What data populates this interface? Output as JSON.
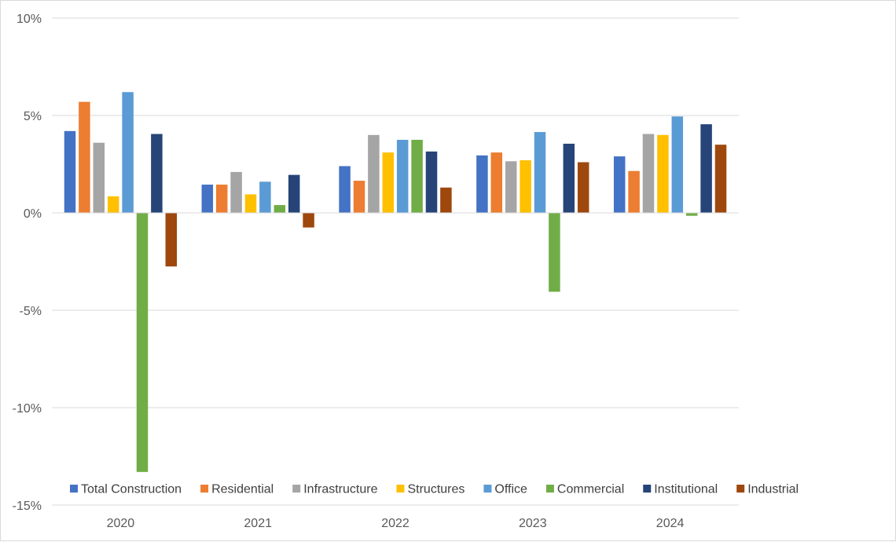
{
  "chart_data": {
    "type": "bar",
    "categories": [
      "2020",
      "2021",
      "2022",
      "2023",
      "2024"
    ],
    "ylim": [
      -15,
      10
    ],
    "yticks": [
      10,
      5,
      0,
      -5,
      -10,
      -15
    ],
    "ytick_labels": [
      "10%",
      "5%",
      "0%",
      "-5%",
      "-10%",
      "-15%"
    ],
    "grid": true,
    "legend_position": "bottom",
    "series": [
      {
        "name": "Total Construction",
        "color": "#4472C4",
        "values": [
          4.2,
          1.45,
          2.4,
          2.95,
          2.9
        ]
      },
      {
        "name": "Residential",
        "color": "#ED7D31",
        "values": [
          5.7,
          1.45,
          1.65,
          3.1,
          2.15
        ]
      },
      {
        "name": "Infrastructure",
        "color": "#A5A5A5",
        "values": [
          3.6,
          2.1,
          4.0,
          2.65,
          4.05
        ]
      },
      {
        "name": "Structures",
        "color": "#FFC000",
        "values": [
          0.85,
          0.95,
          3.1,
          2.7,
          4.0
        ]
      },
      {
        "name": "Office",
        "color": "#5B9BD5",
        "values": [
          6.2,
          1.6,
          3.75,
          4.15,
          4.95
        ]
      },
      {
        "name": "Commercial",
        "color": "#70AD47",
        "values": [
          -13.3,
          0.4,
          3.75,
          -4.05,
          -0.15
        ]
      },
      {
        "name": "Institutional",
        "color": "#264478",
        "values": [
          4.05,
          1.95,
          3.15,
          3.55,
          4.55
        ]
      },
      {
        "name": "Industrial",
        "color": "#9E480E",
        "values": [
          -2.75,
          -0.75,
          1.3,
          2.6,
          3.5
        ]
      }
    ]
  }
}
